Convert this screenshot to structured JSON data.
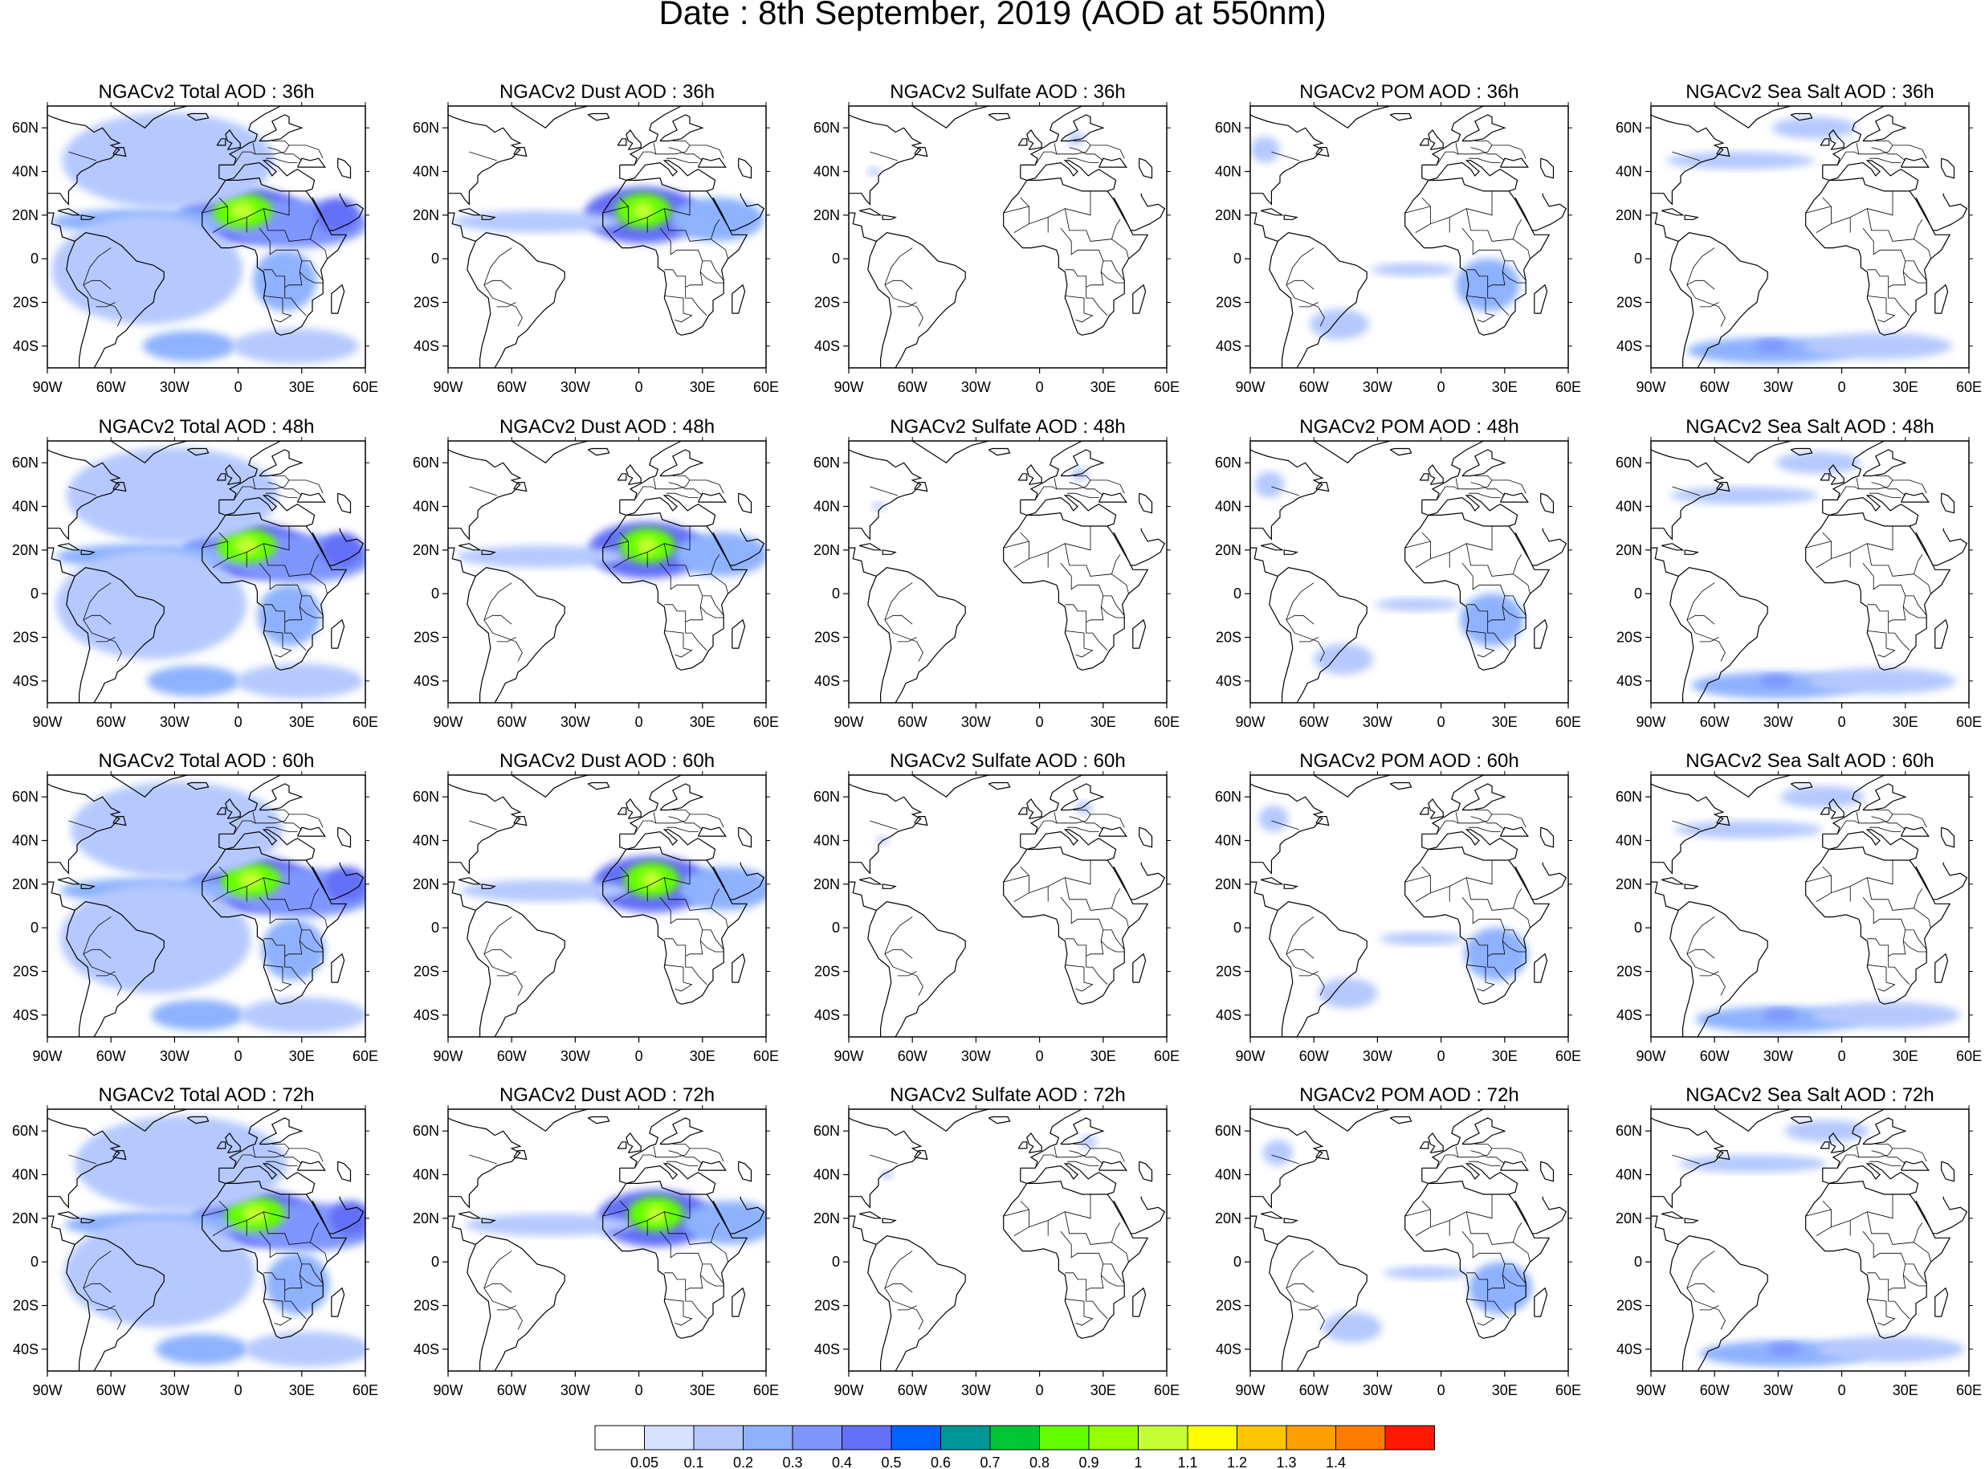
{
  "title": "Date : 8th September, 2019 (AOD at 550nm)",
  "panel_titles": [
    [
      "NGACv2 Total AOD : 36h",
      "NGACv2 Dust AOD : 36h",
      "NGACv2 Sulfate AOD : 36h",
      "NGACv2 POM AOD : 36h",
      "NGACv2 Sea Salt AOD : 36h"
    ],
    [
      "NGACv2 Total AOD : 48h",
      "NGACv2 Dust AOD : 48h",
      "NGACv2 Sulfate AOD : 48h",
      "NGACv2 POM AOD : 48h",
      "NGACv2 Sea Salt AOD : 48h"
    ],
    [
      "NGACv2 Total AOD : 60h",
      "NGACv2 Dust AOD : 60h",
      "NGACv2 Sulfate AOD : 60h",
      "NGACv2 POM AOD : 60h",
      "NGACv2 Sea Salt AOD : 60h"
    ],
    [
      "NGACv2 Total AOD : 72h",
      "NGACv2 Dust AOD : 72h",
      "NGACv2 Sulfate AOD : 72h",
      "NGACv2 POM AOD : 72h",
      "NGACv2 Sea Salt  AOD : 72h"
    ]
  ],
  "map": {
    "lon_ticks": [
      "90W",
      "60W",
      "30W",
      "0",
      "30E",
      "60E"
    ],
    "lat_ticks": [
      "60N",
      "40N",
      "20N",
      "0",
      "20S",
      "40S"
    ],
    "lon_range": [
      -90,
      60
    ],
    "lat_range": [
      -50,
      70
    ]
  },
  "colorbar": {
    "colors": [
      "#ffffff",
      "#d6e2ff",
      "#b5c9ff",
      "#8eb2ff",
      "#7f96ff",
      "#6370f8",
      "#0063ff",
      "#009696",
      "#00c633",
      "#63ff00",
      "#96ff00",
      "#c6ff33",
      "#ffff00",
      "#ffc600",
      "#ffa000",
      "#ff7c00",
      "#ff1900"
    ],
    "labels": [
      "0.05",
      "0.1",
      "0.2",
      "0.3",
      "0.4",
      "0.5",
      "0.6",
      "0.7",
      "0.8",
      "0.9",
      "1",
      "1.1",
      "1.2",
      "1.3",
      "1.4"
    ]
  },
  "fields": {
    "Total": [
      {
        "lon": 5,
        "lat": 20,
        "rlon": 30,
        "rlat": 13,
        "v": 0.45
      },
      {
        "lon": 30,
        "lat": 16,
        "rlon": 34,
        "rlat": 11,
        "v": 0.3
      },
      {
        "lon": 50,
        "lat": 20,
        "rlon": 10,
        "rlat": 8,
        "v": 0.4
      },
      {
        "lon": -40,
        "lat": 17,
        "rlon": 45,
        "rlat": 6,
        "v": 0.25
      },
      {
        "lon": 5,
        "lat": 22,
        "rlon": 14,
        "rlat": 8,
        "v": 0.85
      },
      {
        "lon": 5,
        "lat": 22,
        "rlon": 6,
        "rlat": 4,
        "v": 1.05
      },
      {
        "lon": 25,
        "lat": -10,
        "rlon": 15,
        "rlat": 14,
        "v": 0.25
      },
      {
        "lon": -30,
        "lat": 45,
        "rlon": 50,
        "rlat": 22,
        "v": 0.12
      },
      {
        "lon": -40,
        "lat": -5,
        "rlon": 45,
        "rlat": 25,
        "v": 0.1
      },
      {
        "lon": -20,
        "lat": -40,
        "rlon": 22,
        "rlat": 7,
        "v": 0.2
      },
      {
        "lon": 30,
        "lat": -40,
        "rlon": 30,
        "rlat": 8,
        "v": 0.15
      }
    ],
    "Dust": [
      {
        "lon": 5,
        "lat": 20,
        "rlon": 28,
        "rlat": 13,
        "v": 0.4
      },
      {
        "lon": 40,
        "lat": 18,
        "rlon": 22,
        "rlat": 10,
        "v": 0.25
      },
      {
        "lon": -45,
        "lat": 17,
        "rlon": 40,
        "rlat": 5,
        "v": 0.15
      },
      {
        "lon": 5,
        "lat": 22,
        "rlon": 13,
        "rlat": 8,
        "v": 0.85
      },
      {
        "lon": 5,
        "lat": 22,
        "rlon": 5,
        "rlat": 4,
        "v": 1.05
      }
    ],
    "Sulfate": [
      {
        "lon": 20,
        "lat": 55,
        "rlon": 4,
        "rlat": 3,
        "v": 0.1
      },
      {
        "lon": -75,
        "lat": 40,
        "rlon": 3,
        "rlat": 2,
        "v": 0.1
      }
    ],
    "POM": [
      {
        "lon": 25,
        "lat": -12,
        "rlon": 15,
        "rlat": 12,
        "v": 0.25
      },
      {
        "lon": -45,
        "lat": -30,
        "rlon": 14,
        "rlat": 7,
        "v": 0.15
      },
      {
        "lon": -10,
        "lat": -5,
        "rlon": 20,
        "rlat": 3,
        "v": 0.1
      },
      {
        "lon": -80,
        "lat": 50,
        "rlon": 7,
        "rlat": 6,
        "v": 0.12
      }
    ],
    "SeaSalt": [
      {
        "lon": -30,
        "lat": -42,
        "rlon": 40,
        "rlat": 6,
        "v": 0.2
      },
      {
        "lon": -30,
        "lat": -40,
        "rlon": 8,
        "rlat": 3,
        "v": 0.35
      },
      {
        "lon": -45,
        "lat": 45,
        "rlon": 35,
        "rlat": 4,
        "v": 0.12
      },
      {
        "lon": -10,
        "lat": 60,
        "rlon": 20,
        "rlat": 5,
        "v": 0.12
      },
      {
        "lon": 20,
        "lat": -40,
        "rlon": 35,
        "rlat": 6,
        "v": 0.12
      }
    ]
  }
}
